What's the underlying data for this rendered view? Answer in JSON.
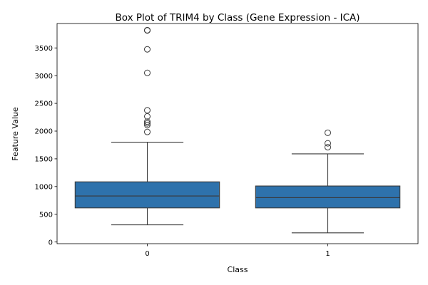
{
  "chart_data": {
    "type": "box",
    "title": "Box Plot of TRIM4 by Class (Gene Expression - ICA)",
    "xlabel": "Class",
    "ylabel": "Feature Value",
    "categories": [
      "0",
      "1"
    ],
    "ylim": [
      -30,
      3940
    ],
    "yticks": [
      0,
      500,
      1000,
      1500,
      2000,
      2500,
      3000,
      3500
    ],
    "grid": false,
    "legend": "none",
    "box_color": "#2e72ac",
    "line_color": "#3a3a3a",
    "boxes": [
      {
        "category": "0",
        "whisker_low": 310,
        "q1": 615,
        "median": 830,
        "q3": 1085,
        "whisker_high": 1800,
        "outliers": [
          3820,
          3815,
          3475,
          3050,
          2375,
          2265,
          2170,
          2140,
          2110,
          1985
        ]
      },
      {
        "category": "1",
        "whisker_low": 165,
        "q1": 615,
        "median": 800,
        "q3": 1010,
        "whisker_high": 1590,
        "outliers": [
          1970,
          1780,
          1710
        ]
      }
    ]
  }
}
